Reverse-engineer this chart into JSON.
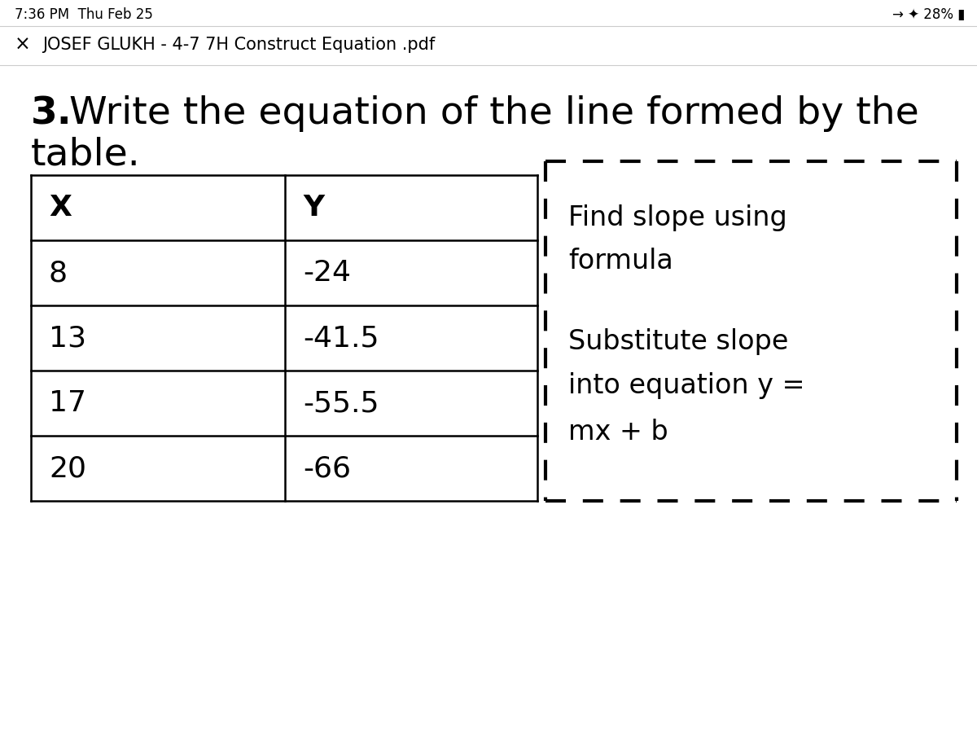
{
  "background_color": "#ffffff",
  "status_bar_text": "7:36 PM  Thu Feb 25",
  "header_text": "JOSEF GLUKH - 4-7 7H Construct Equation .pdf",
  "table_headers": [
    "X",
    "Y"
  ],
  "table_data": [
    [
      "8",
      "-24"
    ],
    [
      "13",
      "-41.5"
    ],
    [
      "17",
      "-55.5"
    ],
    [
      "20",
      "-66"
    ]
  ],
  "hint_line1": "Find slope using",
  "hint_line2": "formula",
  "hint_line3": "Substitute slope",
  "hint_line4": "into equation y =",
  "hint_line5": "mx + b",
  "title_fontsize": 34,
  "table_fontsize": 26,
  "hint_fontsize": 24,
  "status_fontsize": 12,
  "header_fontsize": 15
}
